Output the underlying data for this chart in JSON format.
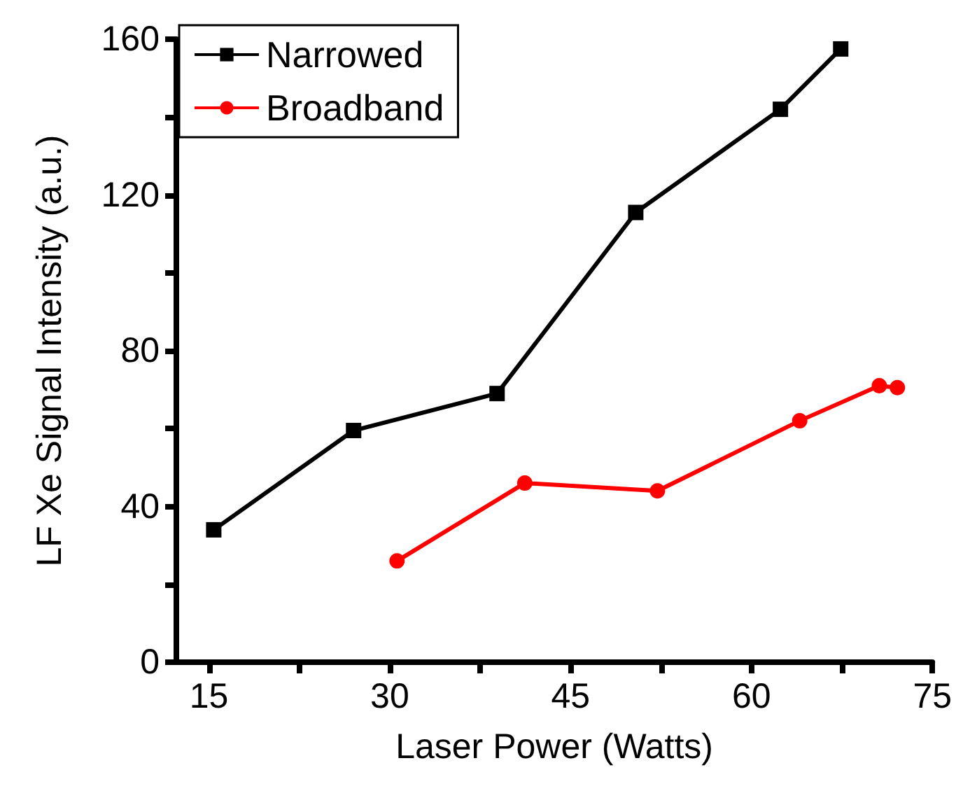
{
  "chart_data": {
    "type": "line",
    "xlabel": "Laser Power (Watts)",
    "ylabel": "LF Xe Signal Intensity (a.u.)",
    "xlim": [
      12.3,
      75
    ],
    "ylim": [
      0,
      160
    ],
    "xticks": [
      15,
      {
        "value": 22.5,
        "label": null
      },
      30,
      {
        "value": 37.5,
        "label": null
      },
      45,
      {
        "value": 52.5,
        "label": null
      },
      60,
      {
        "value": 67.5,
        "label": null
      },
      75
    ],
    "yticks": [
      0,
      {
        "value": 20,
        "label": null
      },
      40,
      {
        "value": 60,
        "label": null
      },
      80,
      {
        "value": 100,
        "label": null
      },
      120,
      {
        "value": 140,
        "label": null
      },
      160
    ],
    "grid": false,
    "legend": "top left",
    "line_style": "solid",
    "series": [
      {
        "name": "Narrowed",
        "color": "#000000",
        "marker": "square",
        "x": [
          15.4,
          27.0,
          38.9,
          50.4,
          62.4,
          67.4
        ],
        "values": [
          34,
          59.5,
          69,
          115.5,
          142,
          157.5
        ]
      },
      {
        "name": "Broadband",
        "color": "#ff0000",
        "marker": "circle",
        "x": [
          30.6,
          41.2,
          52.2,
          64.0,
          70.6,
          72.1
        ],
        "values": [
          26,
          46,
          44,
          62,
          71,
          70.5
        ]
      }
    ]
  }
}
